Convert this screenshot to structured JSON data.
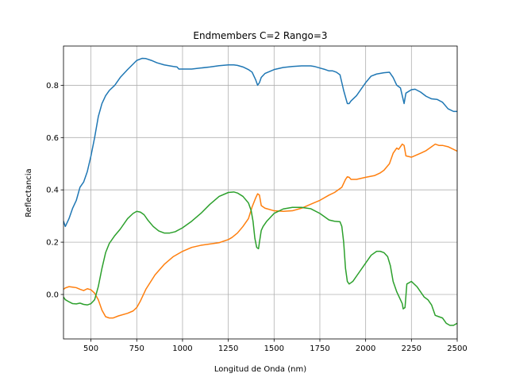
{
  "chart_data": {
    "type": "line",
    "title": "Endmembers C=2 Rango=3",
    "xlabel": "Longitud de Onda (nm)",
    "ylabel": "Reflectancia",
    "xlim": [
      350,
      2500
    ],
    "ylim": [
      -0.17,
      0.95
    ],
    "xticks": [
      500,
      750,
      1000,
      1250,
      1500,
      1750,
      2000,
      2250,
      2500
    ],
    "yticks": [
      0.0,
      0.2,
      0.4,
      0.6,
      0.8
    ],
    "grid": true,
    "series": [
      {
        "color": "#1f77b4",
        "x": [
          350,
          360,
          380,
          400,
          420,
          440,
          460,
          480,
          500,
          520,
          540,
          560,
          580,
          600,
          630,
          660,
          700,
          750,
          780,
          800,
          830,
          860,
          900,
          950,
          970,
          980,
          1000,
          1050,
          1100,
          1150,
          1200,
          1250,
          1280,
          1300,
          1330,
          1360,
          1380,
          1400,
          1410,
          1420,
          1430,
          1450,
          1500,
          1550,
          1600,
          1650,
          1700,
          1720,
          1750,
          1780,
          1800,
          1820,
          1840,
          1860,
          1880,
          1900,
          1910,
          1920,
          1950,
          2000,
          2030,
          2060,
          2100,
          2130,
          2150,
          2170,
          2190,
          2200,
          2210,
          2220,
          2250,
          2270,
          2300,
          2330,
          2360,
          2390,
          2420,
          2450,
          2480,
          2500
        ],
        "y": [
          0.28,
          0.26,
          0.29,
          0.33,
          0.36,
          0.41,
          0.43,
          0.47,
          0.53,
          0.6,
          0.68,
          0.73,
          0.76,
          0.78,
          0.8,
          0.83,
          0.86,
          0.895,
          0.903,
          0.902,
          0.895,
          0.886,
          0.878,
          0.872,
          0.87,
          0.862,
          0.862,
          0.862,
          0.866,
          0.87,
          0.875,
          0.878,
          0.878,
          0.876,
          0.87,
          0.86,
          0.85,
          0.82,
          0.8,
          0.81,
          0.83,
          0.845,
          0.86,
          0.868,
          0.872,
          0.874,
          0.874,
          0.872,
          0.866,
          0.86,
          0.855,
          0.855,
          0.85,
          0.84,
          0.78,
          0.73,
          0.73,
          0.74,
          0.76,
          0.81,
          0.835,
          0.843,
          0.848,
          0.85,
          0.83,
          0.8,
          0.79,
          0.76,
          0.73,
          0.77,
          0.783,
          0.785,
          0.774,
          0.758,
          0.748,
          0.746,
          0.735,
          0.71,
          0.7,
          0.7
        ]
      },
      {
        "color": "#ff7f0e",
        "x": [
          350,
          360,
          380,
          400,
          420,
          440,
          460,
          480,
          500,
          520,
          540,
          560,
          580,
          600,
          620,
          650,
          700,
          730,
          750,
          770,
          800,
          850,
          900,
          950,
          1000,
          1050,
          1100,
          1150,
          1200,
          1250,
          1270,
          1300,
          1330,
          1360,
          1380,
          1400,
          1410,
          1420,
          1430,
          1450,
          1500,
          1550,
          1600,
          1650,
          1700,
          1750,
          1800,
          1830,
          1850,
          1870,
          1890,
          1900,
          1910,
          1920,
          1950,
          2000,
          2050,
          2080,
          2100,
          2130,
          2150,
          2170,
          2180,
          2200,
          2210,
          2220,
          2250,
          2300,
          2330,
          2360,
          2380,
          2400,
          2420,
          2450,
          2480,
          2500
        ],
        "y": [
          0.02,
          0.025,
          0.03,
          0.028,
          0.026,
          0.02,
          0.015,
          0.022,
          0.018,
          0.005,
          -0.02,
          -0.06,
          -0.085,
          -0.09,
          -0.09,
          -0.082,
          -0.072,
          -0.063,
          -0.05,
          -0.025,
          0.02,
          0.075,
          0.115,
          0.145,
          0.165,
          0.18,
          0.188,
          0.193,
          0.198,
          0.21,
          0.218,
          0.235,
          0.26,
          0.29,
          0.335,
          0.37,
          0.385,
          0.38,
          0.34,
          0.33,
          0.32,
          0.318,
          0.32,
          0.33,
          0.345,
          0.36,
          0.38,
          0.39,
          0.4,
          0.41,
          0.44,
          0.45,
          0.448,
          0.44,
          0.44,
          0.448,
          0.455,
          0.465,
          0.475,
          0.5,
          0.54,
          0.56,
          0.555,
          0.575,
          0.57,
          0.53,
          0.525,
          0.54,
          0.55,
          0.565,
          0.575,
          0.57,
          0.57,
          0.565,
          0.555,
          0.548
        ]
      },
      {
        "color": "#2ca02c",
        "x": [
          350,
          360,
          380,
          400,
          420,
          440,
          460,
          480,
          500,
          520,
          540,
          560,
          580,
          600,
          630,
          660,
          700,
          730,
          750,
          770,
          790,
          810,
          840,
          870,
          900,
          930,
          960,
          1000,
          1050,
          1100,
          1150,
          1200,
          1250,
          1280,
          1300,
          1330,
          1360,
          1375,
          1385,
          1395,
          1405,
          1415,
          1420,
          1430,
          1440,
          1460,
          1500,
          1550,
          1600,
          1650,
          1700,
          1750,
          1800,
          1830,
          1860,
          1870,
          1880,
          1890,
          1900,
          1910,
          1930,
          1960,
          2000,
          2030,
          2060,
          2080,
          2100,
          2120,
          2135,
          2150,
          2170,
          2190,
          2200,
          2205,
          2215,
          2225,
          2250,
          2280,
          2300,
          2320,
          2340,
          2360,
          2380,
          2400,
          2420,
          2440,
          2460,
          2480,
          2500
        ],
        "y": [
          -0.01,
          -0.02,
          -0.028,
          -0.035,
          -0.036,
          -0.033,
          -0.038,
          -0.04,
          -0.035,
          -0.02,
          0.03,
          0.1,
          0.16,
          0.195,
          0.225,
          0.25,
          0.29,
          0.31,
          0.318,
          0.315,
          0.305,
          0.285,
          0.26,
          0.243,
          0.235,
          0.235,
          0.24,
          0.255,
          0.28,
          0.31,
          0.345,
          0.375,
          0.39,
          0.392,
          0.388,
          0.375,
          0.35,
          0.32,
          0.28,
          0.215,
          0.18,
          0.175,
          0.2,
          0.245,
          0.26,
          0.28,
          0.31,
          0.327,
          0.333,
          0.333,
          0.328,
          0.31,
          0.285,
          0.28,
          0.278,
          0.26,
          0.2,
          0.1,
          0.05,
          0.04,
          0.05,
          0.08,
          0.12,
          0.15,
          0.165,
          0.165,
          0.16,
          0.145,
          0.11,
          0.05,
          0.01,
          -0.02,
          -0.035,
          -0.055,
          -0.05,
          0.04,
          0.05,
          0.03,
          0.01,
          -0.01,
          -0.02,
          -0.04,
          -0.08,
          -0.085,
          -0.09,
          -0.11,
          -0.118,
          -0.118,
          -0.11
        ]
      }
    ]
  }
}
